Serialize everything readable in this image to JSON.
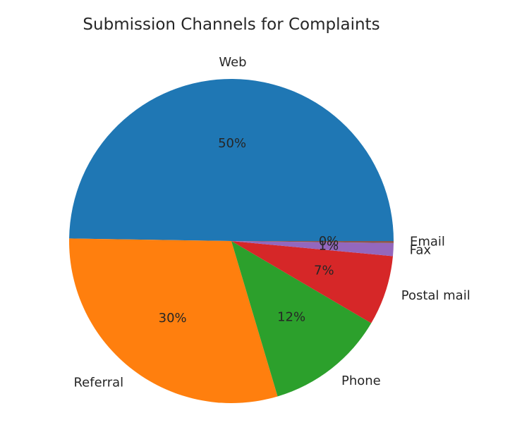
{
  "chart_data": {
    "type": "pie",
    "title": "Submission Channels for Complaints",
    "categories": [
      "Web",
      "Referral",
      "Phone",
      "Postal mail",
      "Fax",
      "Email"
    ],
    "values": [
      50,
      30,
      12,
      7,
      1.3,
      0.2
    ],
    "value_labels": [
      "50%",
      "30%",
      "12%",
      "7%",
      "1%",
      "0%"
    ],
    "colors": [
      "#1f77b4",
      "#ff7f0e",
      "#2ca02c",
      "#d62728",
      "#9467bd",
      "#8c564b"
    ],
    "start_angle_deg": 0,
    "direction": "counterclockwise",
    "legend": "none"
  }
}
